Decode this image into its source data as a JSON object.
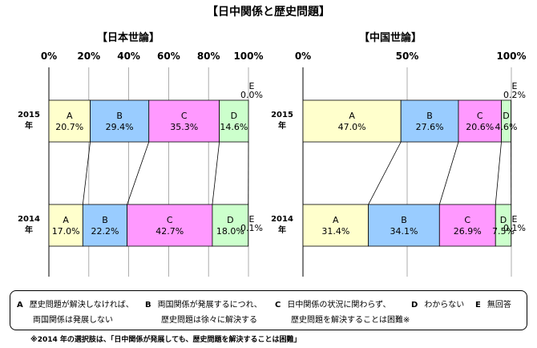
{
  "title": "【日中関係と歴史問題】",
  "chart_data": [
    {
      "type": "bar",
      "orientation": "horizontal-stacked",
      "title": "【日本世論】",
      "xlim": [
        0,
        100
      ],
      "ticks": [
        "0%",
        "20%",
        "40%",
        "60%",
        "80%",
        "100%"
      ],
      "tick_values": [
        0,
        20,
        40,
        60,
        80,
        100
      ],
      "categories": [
        {
          "year": "2015",
          "suffix": "年"
        },
        {
          "year": "2014",
          "suffix": "年"
        }
      ],
      "series": [
        {
          "name": "A",
          "values": [
            20.7,
            17.0
          ],
          "labels": [
            "20.7%",
            "17.0%"
          ],
          "color": "#FFFFCC"
        },
        {
          "name": "B",
          "values": [
            29.4,
            22.2
          ],
          "labels": [
            "29.4%",
            "22.2%"
          ],
          "color": "#99CCFF"
        },
        {
          "name": "C",
          "values": [
            35.3,
            42.7
          ],
          "labels": [
            "35.3%",
            "42.7%"
          ],
          "color": "#FF99FF"
        },
        {
          "name": "D",
          "values": [
            14.6,
            18.0
          ],
          "labels": [
            "14.6%",
            "18.0%"
          ],
          "color": "#CCFFCC"
        },
        {
          "name": "E",
          "values": [
            0.0,
            0.1
          ],
          "labels": [
            "0.0%",
            "0.1%"
          ],
          "color": "#FFFFFF"
        }
      ]
    },
    {
      "type": "bar",
      "orientation": "horizontal-stacked",
      "title": "【中国世論】",
      "xlim": [
        0,
        100
      ],
      "ticks": [
        "0%",
        "50%",
        "100%"
      ],
      "tick_values": [
        0,
        50,
        100
      ],
      "categories": [
        {
          "year": "2015",
          "suffix": "年"
        },
        {
          "year": "2014",
          "suffix": "年"
        }
      ],
      "series": [
        {
          "name": "A",
          "values": [
            47.0,
            31.4
          ],
          "labels": [
            "47.0%",
            "31.4%"
          ],
          "color": "#FFFFCC"
        },
        {
          "name": "B",
          "values": [
            27.6,
            34.1
          ],
          "labels": [
            "27.6%",
            "34.1%"
          ],
          "color": "#99CCFF"
        },
        {
          "name": "C",
          "values": [
            20.6,
            26.9
          ],
          "labels": [
            "20.6%",
            "26.9%"
          ],
          "color": "#FF99FF"
        },
        {
          "name": "D",
          "values": [
            4.6,
            7.5
          ],
          "labels": [
            "4.6%",
            "7.5%"
          ],
          "color": "#CCFFCC"
        },
        {
          "name": "E",
          "values": [
            0.2,
            0.1
          ],
          "labels": [
            "0.2%",
            "0.1%"
          ],
          "color": "#FFFFFF"
        }
      ]
    }
  ],
  "legend": [
    {
      "key": "A",
      "line1": "歴史問題が解決しなければ、",
      "line2": "両国関係は発展しない"
    },
    {
      "key": "B",
      "line1": "両国関係が発展するにつれ、",
      "line2": "歴史問題は徐々に解決する"
    },
    {
      "key": "C",
      "line1": "日中関係の状況に関わらず、",
      "line2": "歴史問題を解決することは困難※"
    },
    {
      "key": "D",
      "line1": "わからない",
      "line2": ""
    },
    {
      "key": "E",
      "line1": "無回答",
      "line2": ""
    }
  ],
  "note": "※2014 年の選択肢は、「日中関係が発展しても、歴史問題を解決することは困難」"
}
